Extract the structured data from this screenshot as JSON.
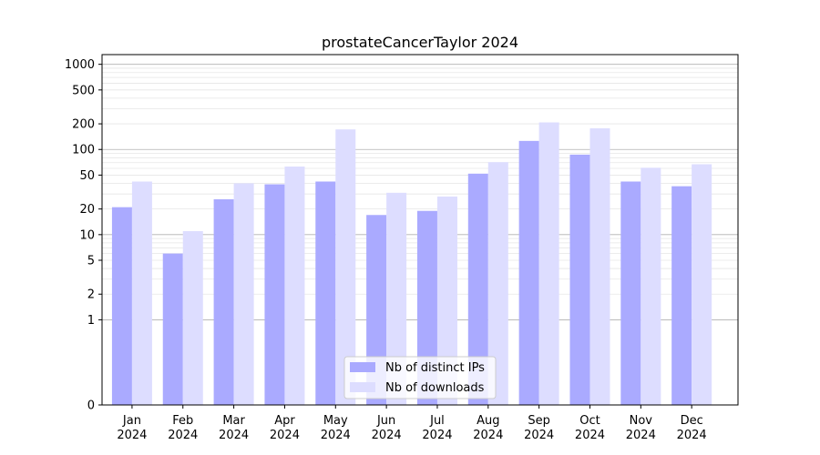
{
  "chart_data": {
    "type": "bar",
    "title": "prostateCancerTaylor 2024",
    "xlabel": "",
    "ylabel": "",
    "y_scale": "symlog",
    "ylim": [
      0,
      1300
    ],
    "y_ticks": [
      0,
      1,
      2,
      5,
      10,
      20,
      50,
      100,
      200,
      500,
      1000
    ],
    "grid": true,
    "legend_position": "lower center",
    "categories": [
      [
        "Jan",
        "2024"
      ],
      [
        "Feb",
        "2024"
      ],
      [
        "Mar",
        "2024"
      ],
      [
        "Apr",
        "2024"
      ],
      [
        "May",
        "2024"
      ],
      [
        "Jun",
        "2024"
      ],
      [
        "Jul",
        "2024"
      ],
      [
        "Aug",
        "2024"
      ],
      [
        "Sep",
        "2024"
      ],
      [
        "Oct",
        "2024"
      ],
      [
        "Nov",
        "2024"
      ],
      [
        "Dec",
        "2024"
      ]
    ],
    "series": [
      {
        "name": "Nb of distinct IPs",
        "color": "#aaaaff",
        "values": [
          21,
          6,
          26,
          39,
          42,
          17,
          19,
          52,
          126,
          87,
          42,
          37
        ]
      },
      {
        "name": "Nb of downloads",
        "color": "#ddddff",
        "values": [
          42,
          11,
          40,
          63,
          172,
          31,
          28,
          71,
          208,
          177,
          61,
          67
        ]
      }
    ]
  }
}
